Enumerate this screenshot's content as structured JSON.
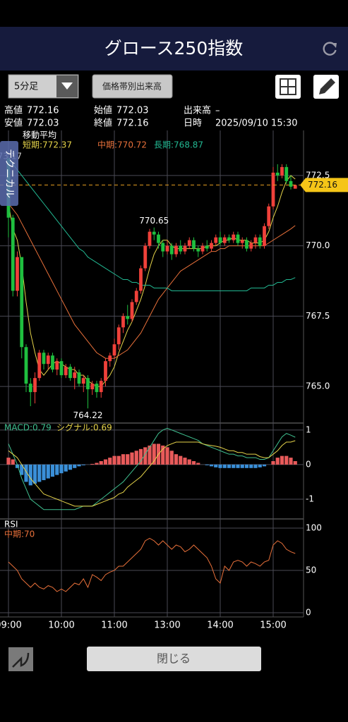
{
  "header": {
    "title": "グロース250指数"
  },
  "toolbar": {
    "interval": "5分足",
    "volume_profile_button": "価格帯別出来高"
  },
  "info": {
    "rows": [
      [
        "高値",
        "772.16",
        "始値",
        "772.03",
        "出来高",
        "–"
      ],
      [
        "安値",
        "772.03",
        "終値",
        "772.16",
        "日時",
        "2025/09/10 15:30"
      ]
    ]
  },
  "side_tab": "テクニカル",
  "close_button": "閉じる",
  "chart_data": [
    {
      "type": "candlestick",
      "title": "移動平均",
      "categories": [
        "09:00",
        null,
        null,
        null,
        null,
        null,
        null,
        null,
        null,
        null,
        null,
        null,
        "10:00",
        null,
        null,
        null,
        null,
        null,
        null,
        null,
        null,
        null,
        null,
        null,
        "11:00",
        null,
        null,
        null,
        null,
        null,
        null,
        null,
        null,
        null,
        null,
        null,
        "13:00",
        null,
        null,
        null,
        null,
        null,
        null,
        null,
        null,
        null,
        null,
        null,
        "14:00",
        null,
        null,
        null,
        null,
        null,
        null,
        null,
        null,
        null,
        null,
        null,
        "15:00",
        null,
        null,
        null,
        null,
        null
      ],
      "ylim": [
        763.7,
        774.1
      ],
      "yticks": [
        772.5,
        {
          "value": 770,
          "label": "770.0"
        },
        767.5,
        {
          "value": 765,
          "label": "765.0"
        }
      ],
      "grid": true,
      "ohlc": {
        "up_color": "#f0413a",
        "down_color": "#1fbf3f",
        "open": [
          773.1,
          771.0,
          768.4,
          769.6,
          766.4,
          765.1,
          764.8,
          765.3,
          766.2,
          765.8,
          766.1,
          765.6,
          765.9,
          765.4,
          765.7,
          765.3,
          765.5,
          765.1,
          765.3,
          764.9,
          765.1,
          764.8,
          765.2,
          765.9,
          766.1,
          766.5,
          767.1,
          767.5,
          767.4,
          768.0,
          768.4,
          769.2,
          770.0,
          770.5,
          770.4,
          770.1,
          769.8,
          770.0,
          769.7,
          770.0,
          769.8,
          770.0,
          770.2,
          769.9,
          769.8,
          770.0,
          769.9,
          770.1,
          770.3,
          770.1,
          770.3,
          770.2,
          770.4,
          770.1,
          770.2,
          769.9,
          770.1,
          770.3,
          770.0,
          770.7,
          771.4,
          772.6,
          772.5,
          772.8,
          772.3,
          772.03
        ],
        "high": [
          773.17,
          771.1,
          769.8,
          769.6,
          766.5,
          765.3,
          765.5,
          766.3,
          766.3,
          766.2,
          766.2,
          766.0,
          766.0,
          765.8,
          765.8,
          765.7,
          765.6,
          765.4,
          765.4,
          765.2,
          765.2,
          765.3,
          766.0,
          766.2,
          766.7,
          767.2,
          767.6,
          767.9,
          768.1,
          768.5,
          769.3,
          770.1,
          770.6,
          770.65,
          770.5,
          770.2,
          770.2,
          770.1,
          770.1,
          770.2,
          770.1,
          770.3,
          770.3,
          770.0,
          770.1,
          770.2,
          770.2,
          770.4,
          770.5,
          770.4,
          770.4,
          770.5,
          770.5,
          770.3,
          770.3,
          770.2,
          770.4,
          770.4,
          770.8,
          771.5,
          772.8,
          772.9,
          772.9,
          772.9,
          772.5,
          772.16
        ],
        "low": [
          770.3,
          768.2,
          768.2,
          766.0,
          764.8,
          764.3,
          764.4,
          765.2,
          765.6,
          765.6,
          765.5,
          765.4,
          765.3,
          765.3,
          765.2,
          764.9,
          765.0,
          764.8,
          764.22,
          764.7,
          764.6,
          764.6,
          765.0,
          765.7,
          766.0,
          766.3,
          766.9,
          767.2,
          767.3,
          767.9,
          768.3,
          769.1,
          769.9,
          770.2,
          769.9,
          769.6,
          769.7,
          769.5,
          769.6,
          769.7,
          769.7,
          769.9,
          769.8,
          769.6,
          769.7,
          769.8,
          769.8,
          770.0,
          770.0,
          770.0,
          770.1,
          770.1,
          770.0,
          769.9,
          769.8,
          769.8,
          769.9,
          769.9,
          769.9,
          770.6,
          771.3,
          772.3,
          772.4,
          772.2,
          772.0,
          772.03
        ],
        "close": [
          771.0,
          768.4,
          769.6,
          766.4,
          765.1,
          764.8,
          765.3,
          766.2,
          765.8,
          766.1,
          765.6,
          765.9,
          765.4,
          765.7,
          765.3,
          765.5,
          765.1,
          765.3,
          764.9,
          765.1,
          764.8,
          765.2,
          765.9,
          766.1,
          766.5,
          767.1,
          767.5,
          767.4,
          768.0,
          768.4,
          769.2,
          770.0,
          770.5,
          770.4,
          770.1,
          769.8,
          770.0,
          769.7,
          770.0,
          769.8,
          770.0,
          770.2,
          769.9,
          769.8,
          770.0,
          769.9,
          770.1,
          770.3,
          770.1,
          770.3,
          770.2,
          770.4,
          770.1,
          770.2,
          769.9,
          770.1,
          770.3,
          770.0,
          770.7,
          771.4,
          772.6,
          772.5,
          772.8,
          772.3,
          772.1,
          772.16
        ]
      },
      "series": [
        {
          "name": "短期:772.37",
          "color": "#e6d44a",
          "values": [
            771.5,
            770.6,
            770.2,
            769.3,
            768.0,
            766.9,
            766.2,
            765.6,
            765.4,
            765.6,
            765.8,
            765.9,
            765.8,
            765.7,
            765.6,
            765.6,
            765.4,
            765.4,
            765.2,
            765.1,
            765.0,
            765.0,
            765.2,
            765.4,
            765.7,
            766.2,
            766.6,
            767.0,
            767.3,
            767.7,
            768.1,
            768.6,
            769.2,
            769.7,
            770.0,
            770.2,
            770.2,
            770.0,
            769.9,
            769.9,
            769.9,
            769.9,
            769.9,
            769.9,
            769.9,
            770.0,
            770.0,
            770.0,
            770.1,
            770.2,
            770.2,
            770.3,
            770.2,
            770.2,
            770.2,
            770.1,
            770.1,
            770.1,
            770.2,
            770.5,
            771.0,
            771.4,
            771.9,
            772.3,
            772.5,
            772.37
          ]
        },
        {
          "name": "中期:770.72",
          "color": "#e8703a",
          "values": [
            771.5,
            771.3,
            771.1,
            770.8,
            770.5,
            770.2,
            769.9,
            769.6,
            769.3,
            769.0,
            768.7,
            768.4,
            768.1,
            767.8,
            767.5,
            767.2,
            767.0,
            766.8,
            766.6,
            766.4,
            766.2,
            766.1,
            766.0,
            766.0,
            766.0,
            766.1,
            766.2,
            766.3,
            766.5,
            766.7,
            766.9,
            767.2,
            767.5,
            767.8,
            768.1,
            768.3,
            768.5,
            768.7,
            768.9,
            769.1,
            769.2,
            769.3,
            769.4,
            769.5,
            769.6,
            769.7,
            769.8,
            769.8,
            769.9,
            769.9,
            770.0,
            770.0,
            770.0,
            770.0,
            770.0,
            770.0,
            770.0,
            770.0,
            770.0,
            770.1,
            770.2,
            770.3,
            770.4,
            770.5,
            770.6,
            770.72
          ]
        },
        {
          "name": "長期:768.87",
          "color": "#22b892",
          "values": [
            773.0,
            772.9,
            772.7,
            772.5,
            772.3,
            772.1,
            771.9,
            771.7,
            771.5,
            771.3,
            771.1,
            770.9,
            770.7,
            770.5,
            770.3,
            770.1,
            769.9,
            769.8,
            769.6,
            769.5,
            769.4,
            769.3,
            769.2,
            769.1,
            769.0,
            768.9,
            768.8,
            768.8,
            768.7,
            768.7,
            768.6,
            768.6,
            768.6,
            768.5,
            768.5,
            768.5,
            768.5,
            768.4,
            768.4,
            768.4,
            768.4,
            768.4,
            768.4,
            768.4,
            768.4,
            768.4,
            768.4,
            768.4,
            768.4,
            768.4,
            768.4,
            768.4,
            768.4,
            768.4,
            768.4,
            768.5,
            768.5,
            768.5,
            768.5,
            768.6,
            768.6,
            768.7,
            768.7,
            768.8,
            768.8,
            768.87
          ]
        }
      ]
    },
    {
      "type": "macd",
      "ylim": [
        -1.55,
        1.2
      ],
      "yticks": [
        1,
        0,
        -1
      ],
      "grid": true,
      "histogram": {
        "up_color": "#e85a5a",
        "down_color": "#3a8fd8",
        "values": [
          0.2,
          0.15,
          -0.1,
          -0.3,
          -0.5,
          -0.6,
          -0.55,
          -0.5,
          -0.45,
          -0.4,
          -0.35,
          -0.3,
          -0.25,
          -0.2,
          -0.15,
          -0.1,
          -0.05,
          -0.02,
          0,
          0.02,
          0.05,
          0.1,
          0.15,
          0.2,
          0.25,
          0.25,
          0.3,
          0.3,
          0.35,
          0.4,
          0.45,
          0.5,
          0.55,
          0.6,
          0.6,
          0.55,
          0.5,
          0.4,
          0.3,
          0.25,
          0.2,
          0.15,
          0.1,
          0.05,
          0,
          -0.02,
          -0.05,
          -0.08,
          -0.1,
          -0.1,
          -0.1,
          -0.1,
          -0.1,
          -0.1,
          -0.1,
          -0.1,
          -0.1,
          -0.08,
          -0.05,
          0,
          0.1,
          0.2,
          0.25,
          0.25,
          0.2,
          0.1
        ]
      },
      "series": [
        {
          "name": "MACD:0.79",
          "color": "#3fbf8f",
          "values": [
            0.6,
            0.3,
            0,
            -0.4,
            -0.7,
            -1.0,
            -1.1,
            -1.2,
            -1.3,
            -1.3,
            -1.3,
            -1.3,
            -1.3,
            -1.3,
            -1.3,
            -1.3,
            -1.25,
            -1.2,
            -1.2,
            -1.2,
            -1.1,
            -1.0,
            -0.9,
            -0.8,
            -0.7,
            -0.6,
            -0.5,
            -0.35,
            -0.2,
            -0.05,
            0.1,
            0.3,
            0.5,
            0.7,
            0.9,
            1.0,
            1.05,
            1.0,
            0.95,
            0.9,
            0.85,
            0.8,
            0.75,
            0.7,
            0.6,
            0.55,
            0.5,
            0.45,
            0.4,
            0.35,
            0.3,
            0.3,
            0.25,
            0.25,
            0.2,
            0.2,
            0.2,
            0.15,
            0.15,
            0.2,
            0.4,
            0.6,
            0.8,
            0.9,
            0.85,
            0.79
          ]
        },
        {
          "name": "シグナル:0.69",
          "color": "#e6d44a",
          "values": [
            0.4,
            0.3,
            0.2,
            0,
            -0.2,
            -0.4,
            -0.55,
            -0.7,
            -0.85,
            -0.9,
            -0.95,
            -1.0,
            -1.05,
            -1.1,
            -1.15,
            -1.2,
            -1.2,
            -1.2,
            -1.2,
            -1.2,
            -1.15,
            -1.1,
            -1.05,
            -1.0,
            -0.95,
            -0.85,
            -0.8,
            -0.65,
            -0.55,
            -0.45,
            -0.35,
            -0.2,
            -0.05,
            0.1,
            0.3,
            0.45,
            0.55,
            0.6,
            0.65,
            0.65,
            0.65,
            0.65,
            0.65,
            0.65,
            0.6,
            0.57,
            0.55,
            0.53,
            0.5,
            0.45,
            0.4,
            0.4,
            0.35,
            0.35,
            0.3,
            0.3,
            0.3,
            0.23,
            0.2,
            0.2,
            0.3,
            0.4,
            0.55,
            0.65,
            0.65,
            0.69
          ]
        }
      ]
    },
    {
      "type": "line",
      "title": "RSI",
      "ylim": [
        -5,
        110
      ],
      "yticks": [
        100,
        50,
        0
      ],
      "grid": true,
      "series": [
        {
          "name": "中期:70",
          "color": "#e8703a",
          "values": [
            60,
            55,
            50,
            40,
            35,
            30,
            35,
            30,
            28,
            32,
            30,
            25,
            28,
            25,
            30,
            35,
            33,
            40,
            30,
            45,
            42,
            38,
            45,
            48,
            50,
            55,
            55,
            60,
            65,
            70,
            75,
            85,
            88,
            85,
            80,
            85,
            80,
            75,
            80,
            78,
            72,
            75,
            80,
            75,
            70,
            65,
            55,
            40,
            35,
            55,
            50,
            60,
            62,
            60,
            55,
            60,
            58,
            55,
            60,
            62,
            80,
            85,
            82,
            75,
            72,
            70
          ]
        }
      ]
    }
  ]
}
